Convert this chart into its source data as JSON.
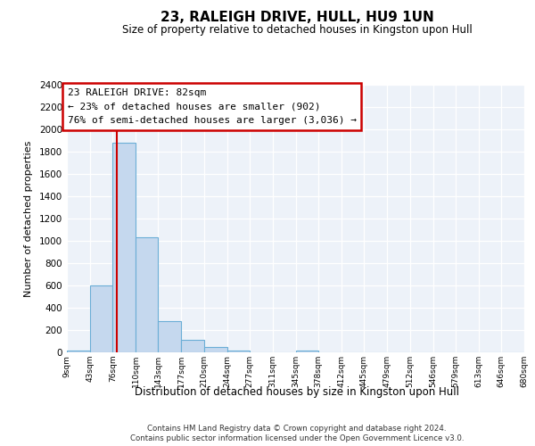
{
  "title": "23, RALEIGH DRIVE, HULL, HU9 1UN",
  "subtitle": "Size of property relative to detached houses in Kingston upon Hull",
  "xlabel": "Distribution of detached houses by size in Kingston upon Hull",
  "ylabel": "Number of detached properties",
  "bin_edges": [
    9,
    43,
    76,
    110,
    143,
    177,
    210,
    244,
    277,
    311,
    345,
    378,
    412,
    445,
    479,
    512,
    546,
    579,
    613,
    646,
    680
  ],
  "bin_counts": [
    20,
    600,
    1880,
    1030,
    280,
    110,
    45,
    20,
    0,
    0,
    20,
    0,
    0,
    0,
    0,
    0,
    0,
    0,
    0,
    0
  ],
  "bar_color": "#c5d8ee",
  "bar_edge_color": "#6baed6",
  "vline_x": 82,
  "vline_color": "#cc0000",
  "annotation_title": "23 RALEIGH DRIVE: 82sqm",
  "annotation_line1": "← 23% of detached houses are smaller (902)",
  "annotation_line2": "76% of semi-detached houses are larger (3,036) →",
  "annotation_box_facecolor": "#ffffff",
  "annotation_box_edgecolor": "#cc0000",
  "ylim": [
    0,
    2400
  ],
  "yticks": [
    0,
    200,
    400,
    600,
    800,
    1000,
    1200,
    1400,
    1600,
    1800,
    2000,
    2200,
    2400
  ],
  "bg_color": "#ffffff",
  "plot_bg_color": "#edf2f9",
  "grid_color": "#ffffff",
  "footer1": "Contains HM Land Registry data © Crown copyright and database right 2024.",
  "footer2": "Contains public sector information licensed under the Open Government Licence v3.0."
}
